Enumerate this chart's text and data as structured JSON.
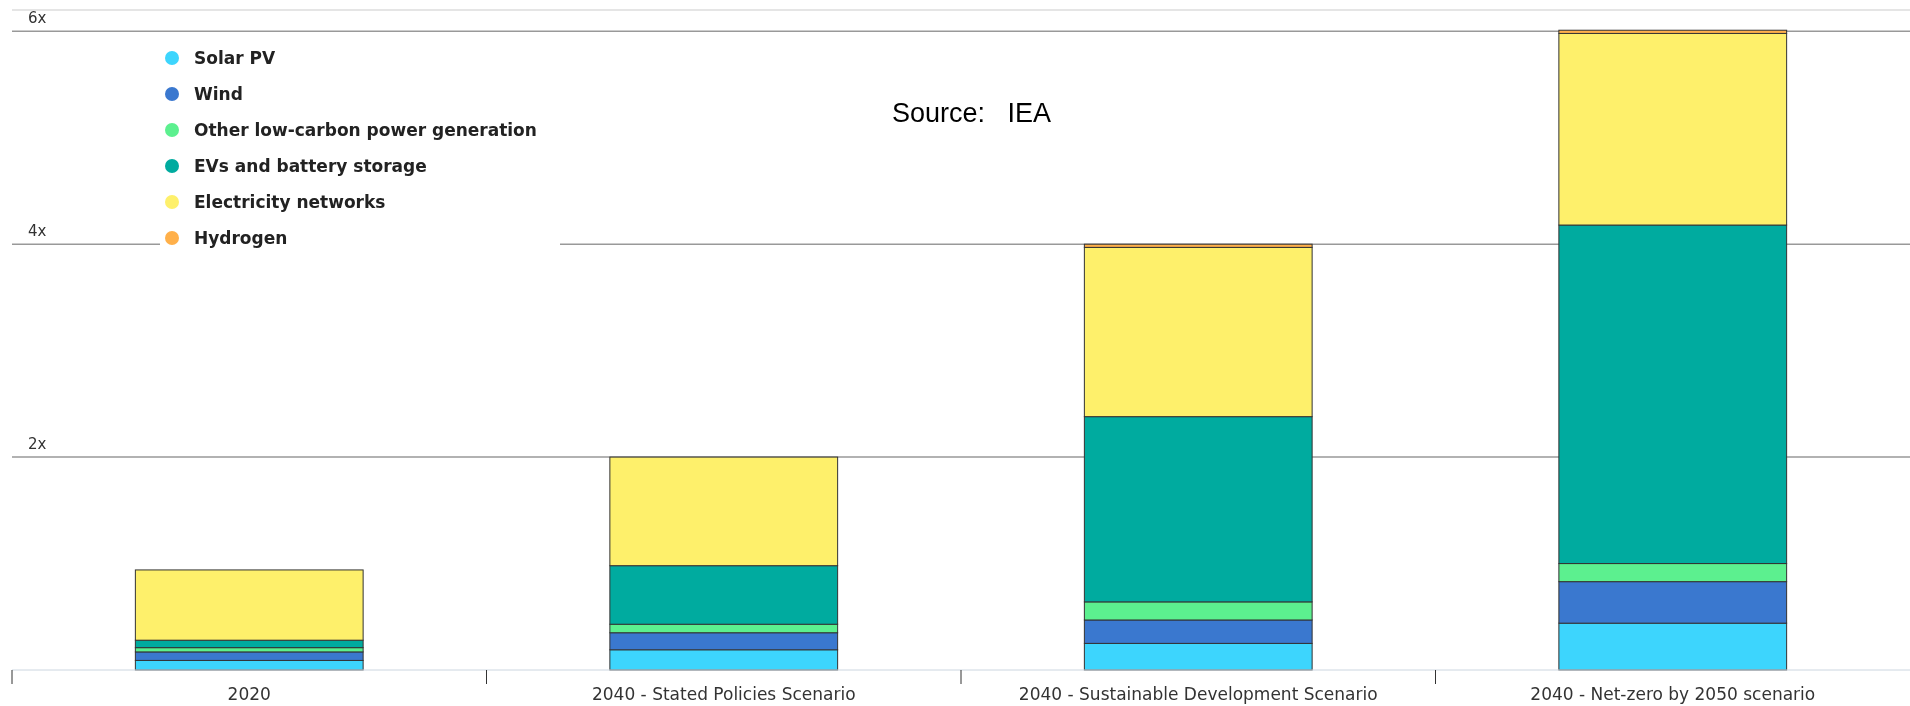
{
  "chart_data": {
    "type": "bar",
    "stacked": true,
    "categories": [
      "2020",
      "2040 - Stated Policies Scenario",
      "2040 - Sustainable Development Scenario",
      "2040 - Net-zero by 2050 scenario"
    ],
    "series": [
      {
        "name": "Solar PV",
        "color": "#3dd5fd",
        "values": [
          0.09,
          0.19,
          0.25,
          0.44
        ]
      },
      {
        "name": "Wind",
        "color": "#3a78cf",
        "values": [
          0.08,
          0.16,
          0.22,
          0.39
        ]
      },
      {
        "name": "Other low-carbon power generation",
        "color": "#5cf08f",
        "values": [
          0.04,
          0.08,
          0.17,
          0.17
        ]
      },
      {
        "name": "EVs and battery storage",
        "color": "#00ab9f",
        "values": [
          0.07,
          0.55,
          1.74,
          3.18
        ]
      },
      {
        "name": "Electricity networks",
        "color": "#fef06b",
        "values": [
          0.66,
          1.02,
          1.59,
          1.8
        ]
      },
      {
        "name": "Hydrogen",
        "color": "#ffb04a",
        "values": [
          0,
          0,
          0.03,
          0.03
        ]
      }
    ],
    "ylim": [
      0,
      6.2
    ],
    "yticks": [
      {
        "value": 2,
        "label": "2x"
      },
      {
        "value": 4,
        "label": "4x"
      },
      {
        "value": 6,
        "label": "6x"
      }
    ],
    "grid": "y",
    "legend": "top left",
    "marker": "circle",
    "annotations": [
      "Source:   IEA"
    ]
  }
}
